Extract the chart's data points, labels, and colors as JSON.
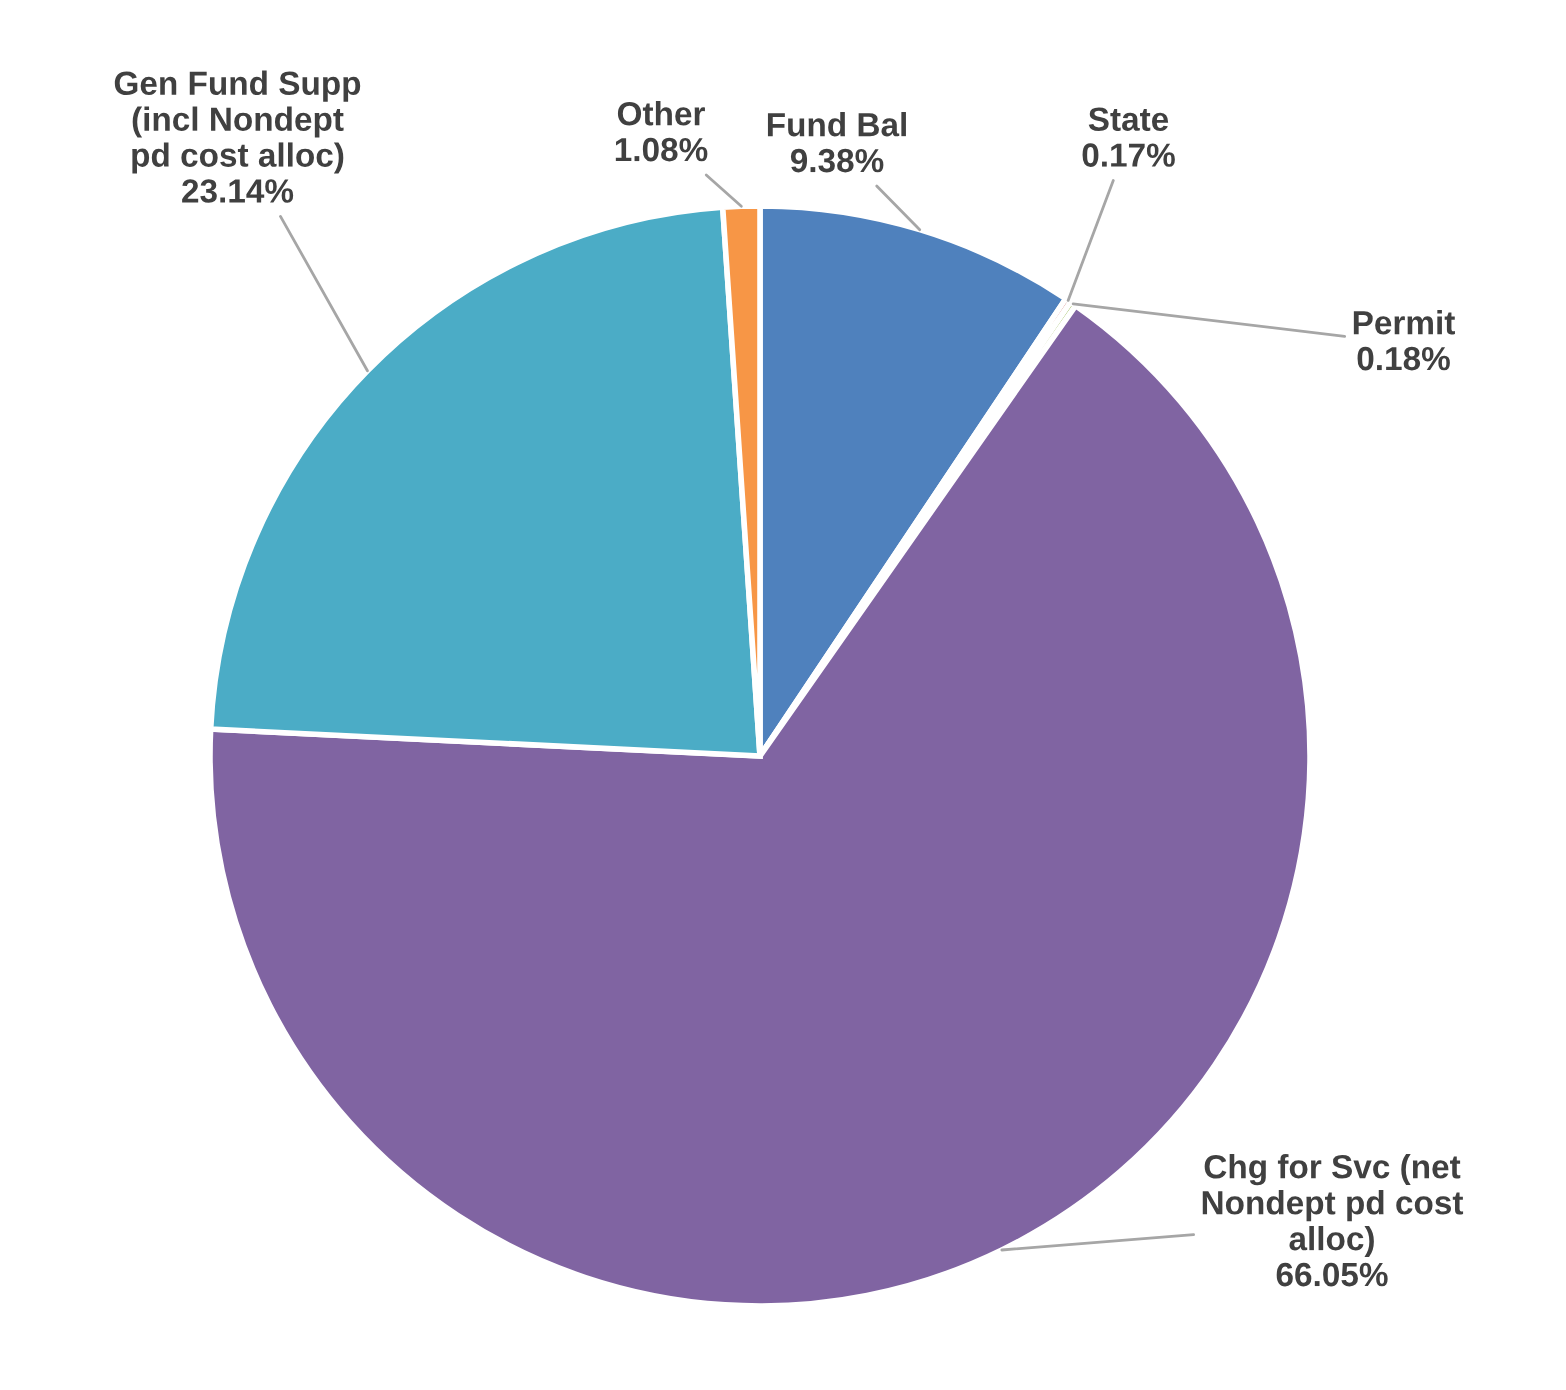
{
  "chart_data": {
    "type": "pie",
    "categories": [
      "Fund Bal",
      "State",
      "Permit",
      "Chg for Svc (net\nNondept pd cost\nalloc)",
      "Gen Fund Supp\n(incl Nondept\npd cost alloc)",
      "Other"
    ],
    "values": [
      9.38,
      0.17,
      0.18,
      66.05,
      23.14,
      1.08
    ],
    "value_labels": [
      "9.38%",
      "0.17%",
      "0.18%",
      "66.05%",
      "23.14%",
      "1.08%"
    ],
    "colors": [
      "#4f81bd",
      "#c0504d",
      "#9bbb59",
      "#8064a2",
      "#4bacc6",
      "#f79646"
    ],
    "legend": false
  }
}
